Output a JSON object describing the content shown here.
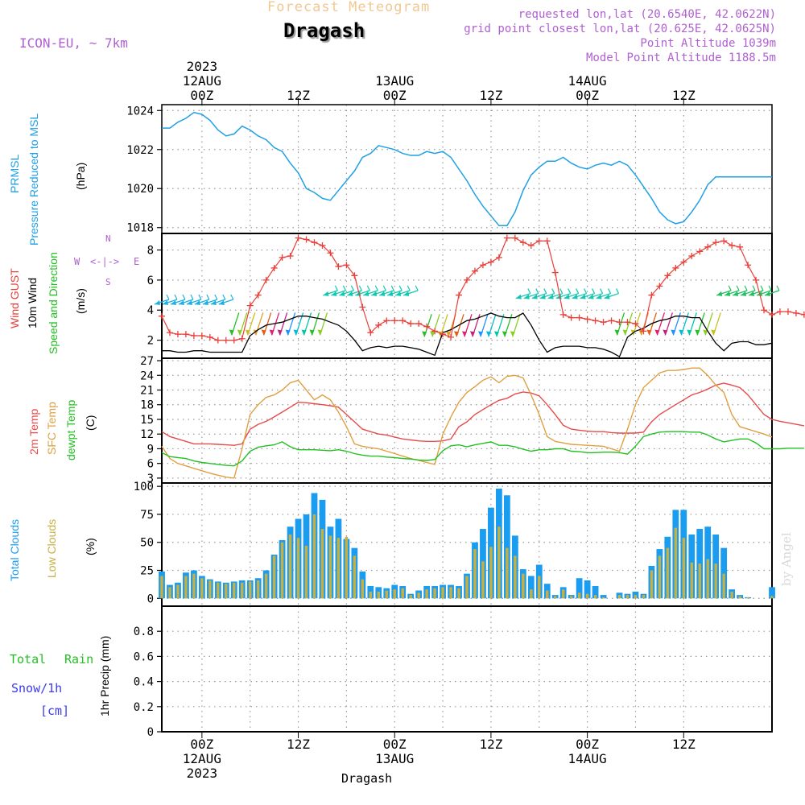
{
  "header": {
    "title_top": "Forecast Meteogram",
    "location": "Dragash",
    "model": "ICON-EU, ~ 7km",
    "requested": "requested lon,lat (20.6540E, 42.0622N)",
    "grid_point": "grid point closest lon,lat (20.625E, 42.0625N)",
    "point_altitude": "Point Altitude 1039m",
    "model_altitude": "Model Point Altitude 1188.5m"
  },
  "time_axis": {
    "top_labels": [
      {
        "lines": [
          "2023",
          "12AUG",
          "00Z"
        ],
        "t": 8
      },
      {
        "lines": [
          "12Z"
        ],
        "t": 20
      },
      {
        "lines": [
          "13AUG",
          "00Z"
        ],
        "t": 32
      },
      {
        "lines": [
          "12Z"
        ],
        "t": 44
      },
      {
        "lines": [
          "14AUG",
          "00Z"
        ],
        "t": 56
      },
      {
        "lines": [
          "12Z"
        ],
        "t": 68
      }
    ],
    "bottom_labels": [
      {
        "lines": [
          "00Z",
          "12AUG",
          "2023"
        ],
        "t": 8
      },
      {
        "lines": [
          "12Z"
        ],
        "t": 20
      },
      {
        "lines": [
          "00Z",
          "13AUG"
        ],
        "t": 32
      },
      {
        "lines": [
          "12Z"
        ],
        "t": 44
      },
      {
        "lines": [
          "00Z",
          "14AUG"
        ],
        "t": 56
      },
      {
        "lines": [
          "12Z"
        ],
        "t": 68
      }
    ],
    "footer": "Dragash",
    "watermark": "by Angel",
    "hour_start": 3,
    "hour_end": 79
  },
  "panel_labels": {
    "pressure": [
      "PRMSL",
      "Pressure Reduced to MSL",
      "(hPa)"
    ],
    "wind": [
      "Wind GUST",
      "10m Wind",
      "Speed and Direction",
      "(m/s)"
    ],
    "compass": {
      "w": "W",
      "e": "E",
      "n": "N",
      "s": "S",
      "arrows": "<-|->"
    },
    "temp": [
      "2m Temp",
      "SFC Temp",
      "dewpt Temp",
      "(C)"
    ],
    "clouds": [
      "Total Clouds",
      "Low Clouds",
      "(%)"
    ],
    "precip": [
      "Total",
      "Rain",
      "Snow/1h",
      "[cm]",
      "1hr Precip (mm)"
    ]
  },
  "colors": {
    "pressure": "#1ea0e6",
    "gust": "#e8403a",
    "wind": "#000000",
    "temp2m": "#e84a4a",
    "sfc": "#e0a040",
    "dewpt": "#22c022",
    "total_clouds": "#1a9cf0",
    "low_clouds": "#c8b040",
    "label_purple": "#b060d0",
    "title_orange": "#f0c890",
    "precip_snow": "#3a3af0",
    "precip_total": "#22c022"
  },
  "chart_data": [
    {
      "type": "line",
      "title": "PRMSL Pressure Reduced to MSL",
      "ylabel": "(hPa)",
      "ylim": [
        1017.7,
        1024.3
      ],
      "yticks": [
        1018,
        1020,
        1022,
        1024
      ],
      "series": [
        {
          "name": "PRMSL",
          "x_start": 3,
          "x_step": 1,
          "values": [
            1023.1,
            1023.1,
            1023.4,
            1023.6,
            1023.9,
            1023.8,
            1023.5,
            1023.0,
            1022.7,
            1022.8,
            1023.2,
            1023.0,
            1022.7,
            1022.5,
            1022.1,
            1021.9,
            1021.3,
            1020.8,
            1020.0,
            1019.8,
            1019.5,
            1019.4,
            1019.9,
            1020.4,
            1020.9,
            1021.6,
            1021.8,
            1022.2,
            1022.1,
            1022.0,
            1021.8,
            1021.7,
            1021.7,
            1021.9,
            1021.8,
            1021.9,
            1021.6,
            1021.0,
            1020.4,
            1019.7,
            1019.1,
            1018.6,
            1018.1,
            1018.1,
            1018.8,
            1019.9,
            1020.7,
            1021.1,
            1021.4,
            1021.4,
            1021.6,
            1021.3,
            1021.1,
            1021.0,
            1021.2,
            1021.3,
            1021.2,
            1021.4,
            1021.2,
            1020.7,
            1020.1,
            1019.5,
            1018.8,
            1018.4,
            1018.2,
            1018.3,
            1018.8,
            1019.4,
            1020.2,
            1020.6,
            1020.6,
            1020.6,
            1020.6,
            1020.6,
            1020.6,
            1020.6,
            1020.6
          ]
        }
      ]
    },
    {
      "type": "line",
      "title": "Wind GUST / 10m Wind Speed and Direction",
      "ylabel": "(m/s)",
      "ylim": [
        0.8,
        9.1
      ],
      "yticks": [
        2,
        4,
        6,
        8
      ],
      "series": [
        {
          "name": "Wind GUST",
          "x_start": 3,
          "x_step": 1,
          "values": [
            3.6,
            2.5,
            2.4,
            2.4,
            2.3,
            2.3,
            2.2,
            2.0,
            2.0,
            2.0,
            2.1,
            4.3,
            5.0,
            6.0,
            6.8,
            7.5,
            7.6,
            8.8,
            8.7,
            8.5,
            8.3,
            7.8,
            6.9,
            7.0,
            6.3,
            4.2,
            2.5,
            3.0,
            3.3,
            3.3,
            3.3,
            3.1,
            3.1,
            2.9,
            2.6,
            2.4,
            2.2,
            5.0,
            6.0,
            6.6,
            7.0,
            7.2,
            7.5,
            8.8,
            8.8,
            8.5,
            8.3,
            8.6,
            8.6,
            6.5,
            3.7,
            3.5,
            3.5,
            3.4,
            3.3,
            3.2,
            3.3,
            3.2,
            3.2,
            3.1,
            2.6,
            5.0,
            5.6,
            6.3,
            6.8,
            7.2,
            7.6,
            7.9,
            8.2,
            8.5,
            8.6,
            8.3,
            8.2,
            7.0,
            6.0,
            4.0,
            3.7,
            3.9,
            3.9,
            3.8,
            3.7
          ]
        },
        {
          "name": "10m Wind",
          "x_start": 3,
          "x_step": 1,
          "values": [
            1.3,
            1.3,
            1.2,
            1.2,
            1.3,
            1.3,
            1.2,
            1.2,
            1.2,
            1.2,
            1.2,
            2.3,
            2.7,
            3.0,
            3.1,
            3.2,
            3.4,
            3.6,
            3.6,
            3.5,
            3.4,
            3.2,
            3.0,
            2.6,
            2.0,
            1.3,
            1.5,
            1.6,
            1.5,
            1.6,
            1.6,
            1.5,
            1.4,
            1.2,
            1.0,
            2.5,
            2.7,
            3.0,
            3.3,
            3.4,
            3.6,
            3.8,
            3.6,
            3.5,
            3.5,
            3.8,
            3.0,
            2.0,
            1.2,
            1.5,
            1.6,
            1.6,
            1.6,
            1.5,
            1.5,
            1.4,
            1.2,
            0.9,
            2.2,
            2.6,
            2.8,
            3.1,
            3.3,
            3.4,
            3.6,
            3.6,
            3.5,
            3.5,
            2.6,
            1.8,
            1.3,
            1.8,
            1.9,
            1.9,
            1.7,
            1.7,
            1.8
          ]
        }
      ]
    },
    {
      "type": "line",
      "title": "2m Temp / SFC Temp / dewpt Temp",
      "ylabel": "(C)",
      "ylim": [
        2,
        27.5
      ],
      "yticks": [
        3,
        6,
        9,
        12,
        15,
        18,
        21,
        24,
        27
      ],
      "series": [
        {
          "name": "2m Temp",
          "x_start": 3,
          "x_step": 1,
          "values": [
            12.5,
            11.5,
            11.0,
            10.5,
            10.0,
            10.0,
            10.0,
            9.9,
            9.8,
            9.7,
            10.0,
            13.0,
            14.0,
            14.6,
            15.5,
            16.5,
            17.5,
            18.5,
            18.4,
            18.2,
            18.0,
            17.8,
            17.5,
            16.0,
            14.5,
            13.0,
            12.5,
            12.0,
            11.8,
            11.4,
            11.0,
            10.8,
            10.6,
            10.5,
            10.5,
            10.6,
            11.0,
            13.5,
            14.5,
            16.0,
            17.0,
            18.0,
            18.9,
            19.3,
            20.2,
            20.6,
            20.4,
            19.8,
            18.0,
            16.0,
            13.8,
            13.0,
            12.8,
            12.6,
            12.5,
            12.5,
            12.3,
            12.2,
            12.2,
            12.2,
            12.4,
            14.5,
            16.0,
            17.0,
            18.0,
            19.0,
            20.0,
            20.5,
            21.2,
            22.0,
            22.4,
            22.0,
            21.5,
            20.0,
            18.0,
            16.0,
            15.0,
            14.6,
            14.3,
            14.0,
            13.7
          ]
        },
        {
          "name": "SFC Temp",
          "x_start": 3,
          "x_step": 1,
          "values": [
            9.5,
            7.0,
            6.0,
            5.5,
            5.0,
            4.5,
            4.0,
            3.6,
            3.2,
            3.0,
            9.0,
            16.0,
            18.0,
            19.5,
            20.0,
            21.0,
            22.5,
            23.0,
            21.0,
            19.0,
            20.0,
            19.0,
            16.5,
            13.5,
            10.0,
            9.5,
            9.2,
            9.0,
            8.5,
            8.0,
            7.5,
            7.0,
            6.6,
            6.2,
            5.8,
            12.0,
            15.5,
            18.5,
            20.5,
            21.7,
            23.0,
            23.7,
            22.5,
            23.8,
            24.0,
            23.5,
            20.0,
            16.0,
            11.5,
            10.5,
            10.2,
            9.9,
            9.8,
            9.7,
            9.6,
            9.5,
            9.0,
            8.5,
            13.0,
            18.0,
            21.5,
            23.0,
            24.5,
            25.0,
            25.0,
            25.2,
            25.5,
            25.5,
            24.0,
            22.0,
            20.5,
            16.0,
            13.5,
            13.0,
            12.5,
            12.0,
            11.4
          ]
        },
        {
          "name": "dewpt Temp",
          "x_start": 3,
          "x_step": 1,
          "values": [
            8.2,
            7.4,
            7.2,
            7.0,
            6.5,
            6.2,
            6.0,
            5.8,
            5.6,
            5.5,
            6.5,
            8.5,
            9.3,
            9.6,
            9.8,
            10.4,
            9.4,
            8.8,
            8.8,
            8.8,
            8.7,
            8.6,
            8.8,
            8.5,
            8.0,
            7.7,
            7.5,
            7.5,
            7.3,
            7.2,
            7.0,
            6.9,
            6.7,
            6.6,
            6.8,
            8.6,
            9.6,
            9.8,
            9.4,
            9.8,
            10.1,
            10.4,
            9.7,
            9.7,
            9.4,
            8.9,
            8.5,
            8.8,
            8.8,
            9.0,
            9.0,
            8.5,
            8.4,
            8.2,
            8.2,
            8.3,
            8.3,
            8.2,
            7.9,
            9.5,
            11.5,
            12.0,
            12.4,
            12.5,
            12.5,
            12.5,
            12.4,
            12.4,
            11.8,
            11.0,
            10.4,
            10.7,
            11.0,
            11.0,
            10.2,
            9.0,
            9.0,
            9.0,
            9.1,
            9.1,
            9.1
          ]
        }
      ]
    },
    {
      "type": "bar",
      "title": "Total Clouds / Low Clouds",
      "ylabel": "(%)",
      "ylim": [
        -7,
        103
      ],
      "yticks": [
        0,
        25,
        50,
        75,
        100
      ],
      "x_start": 3,
      "x_step": 1,
      "series": [
        {
          "name": "Total Clouds",
          "values": [
            24,
            12,
            14,
            23,
            25,
            20,
            17,
            15,
            14,
            15,
            16,
            16,
            18,
            25,
            39,
            52,
            64,
            71,
            75,
            94,
            88,
            64,
            71,
            53,
            45,
            24,
            11,
            10,
            9,
            12,
            11,
            4,
            7,
            11,
            11,
            12,
            12,
            11,
            22,
            50,
            62,
            81,
            98,
            92,
            56,
            26,
            20,
            30,
            13,
            3,
            10,
            3,
            18,
            16,
            11,
            3,
            0,
            5,
            4,
            6,
            4,
            29,
            44,
            55,
            79,
            79,
            57,
            62,
            64,
            57,
            45,
            8,
            3,
            1,
            0,
            0,
            10
          ]
        },
        {
          "name": "Low Clouds",
          "values": [
            20,
            10,
            12,
            20,
            22,
            18,
            16,
            14,
            13,
            14,
            14,
            15,
            16,
            22,
            38,
            50,
            57,
            54,
            47,
            75,
            62,
            56,
            54,
            55,
            38,
            17,
            6,
            6,
            7,
            8,
            9,
            3,
            5,
            8,
            9,
            10,
            10,
            9,
            20,
            44,
            33,
            46,
            64,
            45,
            38,
            22,
            8,
            20,
            7,
            2,
            8,
            2,
            5,
            4,
            3,
            1,
            0,
            3,
            3,
            3,
            3,
            25,
            38,
            45,
            63,
            54,
            32,
            31,
            35,
            31,
            22,
            6,
            2,
            1,
            0,
            0,
            2
          ]
        }
      ]
    },
    {
      "type": "bar",
      "title": "1hr Precip (mm)",
      "ylabel": "1hr Precip (mm)",
      "ylim": [
        0,
        1.0
      ],
      "yticks": [
        0,
        0.2,
        0.4,
        0.6,
        0.8
      ],
      "series": [
        {
          "name": "Total",
          "values": []
        }
      ]
    }
  ],
  "wind_barbs": {
    "x_start": 3,
    "colors": [
      "#1e90ff",
      "#00bcd4",
      "#00c8a0",
      "#22c022",
      "#88d020",
      "#c8c020",
      "#e0a020",
      "#e06010",
      "#e02070",
      "#c02080"
    ],
    "groups": [
      {
        "t_from": 3,
        "t_to": 11,
        "y": 4.6,
        "dir": "west",
        "color": "#20b0e0"
      },
      {
        "t_from": 12,
        "t_to": 23,
        "y": 3.4,
        "dir": "down",
        "color": "#e08020"
      },
      {
        "t_from": 24,
        "t_to": 34,
        "y": 5.2,
        "dir": "west",
        "color": "#10c8b0"
      },
      {
        "t_from": 36,
        "t_to": 47,
        "y": 3.3,
        "dir": "down",
        "color": "#d0a020"
      },
      {
        "t_from": 48,
        "t_to": 59,
        "y": 5.0,
        "dir": "west",
        "color": "#10c8b0"
      },
      {
        "t_from": 60,
        "t_to": 72,
        "y": 3.4,
        "dir": "down",
        "color": "#c0a020"
      },
      {
        "t_from": 73,
        "t_to": 79,
        "y": 5.2,
        "dir": "west",
        "color": "#20c060"
      }
    ]
  }
}
